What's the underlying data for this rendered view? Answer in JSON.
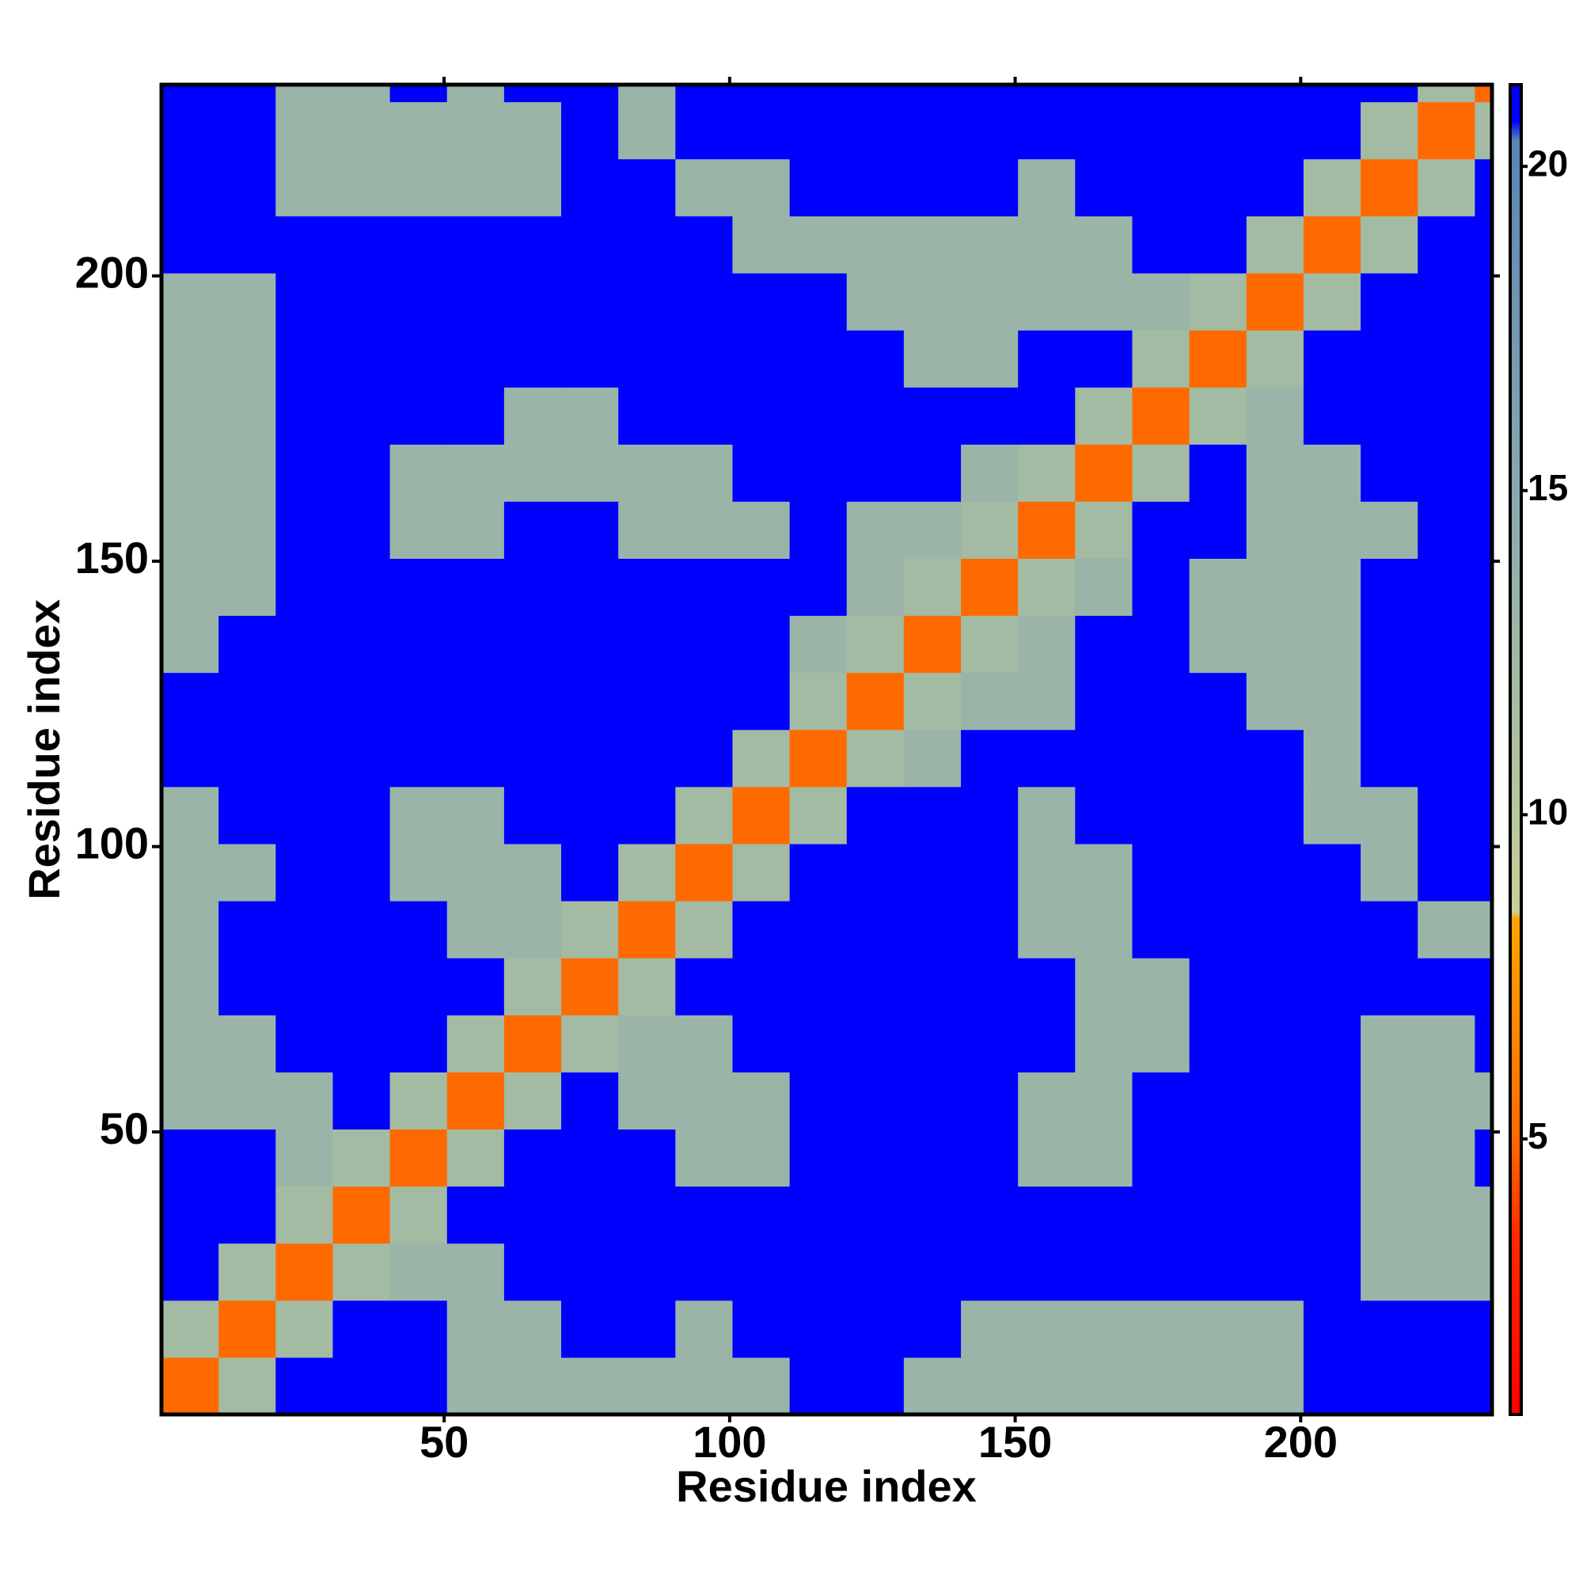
{
  "chart_data": {
    "type": "heatmap",
    "x_label": "Residue index",
    "y_label": "Residue index",
    "xbins": [
      0.5,
      10.5,
      20.5,
      30.5,
      40.5,
      50.5,
      60.5,
      70.5,
      80.5,
      90.5,
      100.5,
      110.5,
      120.5,
      130.5,
      140.5,
      150.5,
      160.5,
      170.5,
      180.5,
      190.5,
      200.5,
      210.5,
      220.5,
      230.5,
      233.5
    ],
    "ybins": [
      0.5,
      10.5,
      20.5,
      30.5,
      40.5,
      50.5,
      60.5,
      70.5,
      80.5,
      90.5,
      100.5,
      110.5,
      120.5,
      130.5,
      140.5,
      150.5,
      160.5,
      170.5,
      180.5,
      190.5,
      200.5,
      210.5,
      220.5,
      230.5,
      233.5
    ],
    "xlim": [
      0.5,
      233.5
    ],
    "ylim": [
      0.5,
      233.5
    ],
    "xticks": [
      50,
      100,
      150,
      200
    ],
    "yticks": [
      50,
      100,
      150,
      200
    ],
    "zlim": [
      0.75,
      21.26
    ],
    "zticks": [
      5,
      10,
      15,
      20
    ],
    "colorscale": [
      [
        0.75,
        "#ff0000"
      ],
      [
        3.5,
        "#ff2a00"
      ],
      [
        5,
        "#ff6a00"
      ],
      [
        8.4,
        "#ffa500"
      ],
      [
        8.5,
        "#c8d09a"
      ],
      [
        11.5,
        "#a8bea0"
      ],
      [
        15,
        "#88a8b0"
      ],
      [
        20.4,
        "#5c84b4"
      ],
      [
        20.7,
        "#0000ff"
      ],
      [
        21.26,
        "#0000ff"
      ]
    ],
    "z": [
      [
        5,
        12,
        21,
        21,
        21,
        13,
        13,
        13,
        13,
        13,
        13,
        21,
        21,
        13,
        13,
        13,
        13,
        13,
        13,
        13,
        21,
        21,
        21,
        21
      ],
      [
        12,
        5,
        12,
        21,
        21,
        13,
        13,
        21,
        21,
        13,
        21,
        21,
        21,
        21,
        13,
        13,
        13,
        13,
        13,
        13,
        21,
        21,
        21,
        21
      ],
      [
        21,
        12,
        5,
        12,
        13,
        13,
        21,
        21,
        21,
        21,
        21,
        21,
        21,
        21,
        21,
        21,
        21,
        21,
        21,
        21,
        21,
        13,
        13,
        13
      ],
      [
        21,
        21,
        12,
        5,
        12,
        21,
        21,
        21,
        21,
        21,
        21,
        21,
        21,
        21,
        21,
        21,
        21,
        21,
        21,
        21,
        21,
        13,
        13,
        13
      ],
      [
        21,
        21,
        13,
        12,
        5,
        12,
        21,
        21,
        21,
        13,
        13,
        21,
        21,
        21,
        21,
        13,
        13,
        21,
        21,
        21,
        21,
        13,
        13,
        21
      ],
      [
        13,
        13,
        13,
        21,
        12,
        5,
        12,
        21,
        13,
        13,
        13,
        21,
        21,
        21,
        21,
        13,
        13,
        21,
        21,
        21,
        21,
        13,
        13,
        13
      ],
      [
        13,
        13,
        21,
        21,
        21,
        12,
        5,
        12,
        13,
        13,
        21,
        21,
        21,
        21,
        21,
        21,
        13,
        13,
        21,
        21,
        21,
        13,
        13,
        21
      ],
      [
        13,
        21,
        21,
        21,
        21,
        21,
        12,
        5,
        12,
        21,
        21,
        21,
        21,
        21,
        21,
        21,
        13,
        13,
        21,
        21,
        21,
        21,
        21,
        21
      ],
      [
        13,
        21,
        21,
        21,
        21,
        13,
        13,
        12,
        5,
        12,
        21,
        21,
        21,
        21,
        21,
        13,
        13,
        21,
        21,
        21,
        21,
        21,
        13,
        13
      ],
      [
        13,
        13,
        21,
        21,
        13,
        13,
        13,
        21,
        12,
        5,
        12,
        21,
        21,
        21,
        21,
        13,
        13,
        21,
        21,
        21,
        21,
        13,
        21,
        21
      ],
      [
        13,
        21,
        21,
        21,
        13,
        13,
        21,
        21,
        21,
        12,
        5,
        12,
        21,
        21,
        21,
        13,
        21,
        21,
        21,
        21,
        13,
        13,
        21,
        21
      ],
      [
        21,
        21,
        21,
        21,
        21,
        21,
        21,
        21,
        21,
        21,
        12,
        5,
        12,
        13,
        21,
        21,
        21,
        21,
        21,
        21,
        13,
        21,
        21,
        21
      ],
      [
        21,
        21,
        21,
        21,
        21,
        21,
        21,
        21,
        21,
        21,
        21,
        12,
        5,
        12,
        13,
        13,
        21,
        21,
        21,
        13,
        13,
        21,
        21,
        21
      ],
      [
        13,
        21,
        21,
        21,
        21,
        21,
        21,
        21,
        21,
        21,
        21,
        13,
        12,
        5,
        12,
        13,
        21,
        21,
        13,
        13,
        13,
        21,
        21,
        21
      ],
      [
        13,
        13,
        21,
        21,
        21,
        21,
        21,
        21,
        21,
        21,
        21,
        21,
        13,
        12,
        5,
        12,
        13,
        21,
        13,
        13,
        13,
        21,
        21,
        21
      ],
      [
        13,
        13,
        21,
        21,
        13,
        13,
        21,
        21,
        13,
        13,
        13,
        21,
        13,
        13,
        12,
        5,
        12,
        21,
        21,
        13,
        13,
        13,
        21,
        21
      ],
      [
        13,
        13,
        21,
        21,
        13,
        13,
        13,
        13,
        13,
        13,
        21,
        21,
        21,
        21,
        13,
        12,
        5,
        12,
        21,
        13,
        13,
        21,
        21,
        21
      ],
      [
        13,
        13,
        21,
        21,
        21,
        21,
        13,
        13,
        21,
        21,
        21,
        21,
        21,
        21,
        21,
        21,
        12,
        5,
        12,
        13,
        21,
        21,
        21,
        21
      ],
      [
        13,
        13,
        21,
        21,
        21,
        21,
        21,
        21,
        21,
        21,
        21,
        21,
        21,
        13,
        13,
        21,
        21,
        12,
        5,
        12,
        21,
        21,
        21,
        21
      ],
      [
        13,
        13,
        21,
        21,
        21,
        21,
        21,
        21,
        21,
        21,
        21,
        21,
        13,
        13,
        13,
        13,
        13,
        13,
        12,
        5,
        12,
        21,
        21,
        21
      ],
      [
        21,
        21,
        21,
        21,
        21,
        21,
        21,
        21,
        21,
        21,
        13,
        13,
        13,
        13,
        13,
        13,
        13,
        21,
        21,
        12,
        5,
        12,
        21,
        21
      ],
      [
        21,
        21,
        13,
        13,
        13,
        13,
        13,
        21,
        21,
        13,
        13,
        21,
        21,
        21,
        21,
        13,
        21,
        21,
        21,
        21,
        12,
        5,
        12,
        21
      ],
      [
        21,
        21,
        13,
        13,
        13,
        13,
        13,
        21,
        13,
        21,
        21,
        21,
        21,
        21,
        21,
        21,
        21,
        21,
        21,
        21,
        21,
        12,
        5,
        12
      ],
      [
        21,
        21,
        13,
        13,
        21,
        13,
        21,
        21,
        13,
        21,
        21,
        21,
        21,
        21,
        21,
        21,
        21,
        21,
        21,
        21,
        21,
        21,
        12,
        5
      ]
    ]
  }
}
